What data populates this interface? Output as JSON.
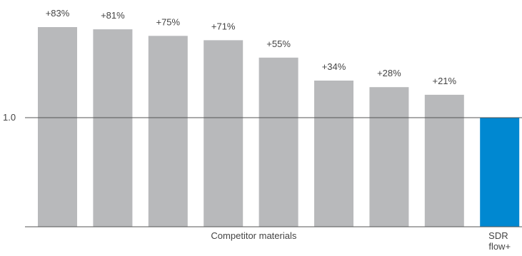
{
  "chart_data": {
    "type": "bar",
    "categories": [
      "",
      "",
      "",
      "",
      "",
      "",
      "",
      "",
      "SDR flow+"
    ],
    "values": [
      1.83,
      1.81,
      1.75,
      1.71,
      1.55,
      1.34,
      1.28,
      1.21,
      1.0
    ],
    "data_labels": [
      "+83%",
      "+81%",
      "+75%",
      "+71%",
      "+55%",
      "+34%",
      "+28%",
      "+21%",
      ""
    ],
    "reference_line": {
      "value": 1.0,
      "label": "1.0"
    },
    "group_labels": [
      {
        "label": "Competitor materials",
        "span": [
          0,
          7
        ]
      },
      {
        "label": "SDR flow+",
        "span": [
          8,
          8
        ],
        "lines": [
          "SDR",
          "flow+"
        ]
      }
    ],
    "ylim": [
      0,
      2
    ],
    "colors": {
      "competitor": "#b8b9bb",
      "highlight": "#0088d1",
      "axis": "#555555"
    },
    "title": "",
    "xlabel": "",
    "ylabel": ""
  }
}
